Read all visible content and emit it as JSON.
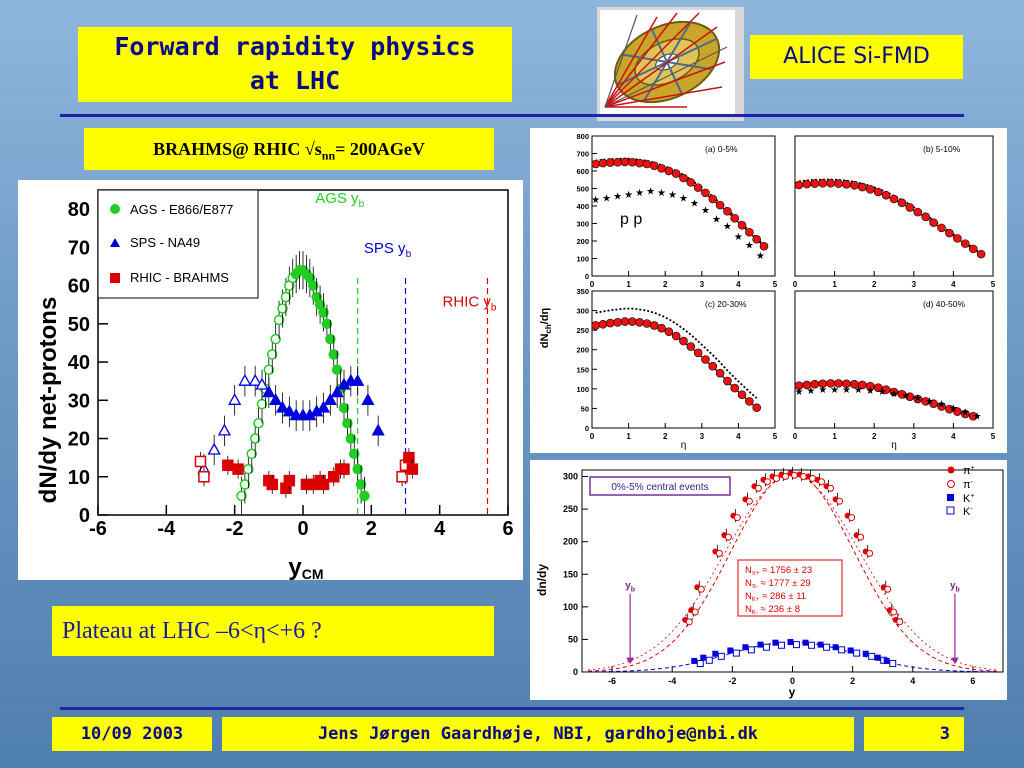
{
  "header": {
    "title_line1": "Forward rapidity physics",
    "title_line2": "at LHC",
    "detector_label": "ALICE Si-FMD"
  },
  "brahms_caption": {
    "prefix": "BRAHMS@ RHIC √s",
    "sub": "nn",
    "suffix": "= 200AGeV"
  },
  "plateau_caption": "Plateau at LHC –6<η<+6 ?",
  "footer": {
    "date": "10/09 2003",
    "author": "Jens Jørgen Gaardhøje, NBI, gardhoje@nbi.dk",
    "page": "3"
  },
  "colors": {
    "title_yellow": "#ffff00",
    "title_blue": "#0a0a8a",
    "green": "#22cc22",
    "blue": "#0000dd",
    "red": "#dd0000"
  },
  "chart_data": [
    {
      "type": "scatter",
      "ylabel": "dN/dy net-protons",
      "xlabel": "y",
      "xlabel_sub": "CM",
      "xlim": [
        -6,
        6
      ],
      "ylim": [
        0,
        85
      ],
      "xticks": [
        "-6",
        "-4",
        "-2",
        "0",
        "2",
        "4",
        "6"
      ],
      "yticks": [
        "0",
        "10",
        "20",
        "30",
        "40",
        "50",
        "60",
        "70",
        "80"
      ],
      "legend": [
        "AGS - E866/E877",
        "SPS - NA49",
        "RHIC - BRAHMS"
      ],
      "annotations": [
        {
          "label": "AGS y",
          "sub": "b",
          "x": 1.6,
          "color": "#22cc22"
        },
        {
          "label": "SPS y",
          "sub": "b",
          "x": 3.0,
          "color": "#0000dd"
        },
        {
          "label": "RHIC y",
          "sub": "b",
          "x": 5.4,
          "color": "#dd0000"
        }
      ],
      "series": [
        {
          "name": "AGS - E866/E877",
          "x": [
            -1.8,
            -1.7,
            -1.6,
            -1.5,
            -1.4,
            -1.3,
            -1.2,
            -1.1,
            -1.0,
            -0.9,
            -0.8,
            -0.7,
            -0.6,
            -0.5,
            -0.4,
            -0.3,
            -0.2,
            -0.1,
            0.0,
            0.1,
            0.2,
            0.3,
            0.4,
            0.5,
            0.6,
            0.7,
            0.8,
            0.9,
            1.0,
            1.1,
            1.2,
            1.3,
            1.4,
            1.5,
            1.6,
            1.7,
            1.8
          ],
          "y": [
            5,
            8,
            12,
            16,
            20,
            24,
            29,
            33,
            38,
            42,
            46,
            51,
            54,
            57,
            60,
            62,
            63,
            64,
            64,
            63,
            62,
            60,
            57,
            55,
            53,
            50,
            46,
            42,
            38,
            33,
            28,
            24,
            20,
            16,
            12,
            8,
            5
          ]
        },
        {
          "name": "SPS - NA49",
          "x": [
            -2.9,
            -2.6,
            -2.3,
            -2.0,
            -1.7,
            -1.4,
            -1.2,
            -1.0,
            -0.8,
            -0.6,
            -0.4,
            -0.2,
            0.0,
            0.2,
            0.4,
            0.6,
            0.8,
            1.0,
            1.2,
            1.4,
            1.6,
            1.9,
            2.2
          ],
          "y": [
            12,
            17,
            22,
            30,
            35,
            35,
            34,
            32,
            30,
            28,
            27,
            26,
            26,
            26,
            27,
            28,
            30,
            32,
            34,
            35,
            35,
            30,
            22
          ]
        },
        {
          "name": "RHIC - BRAHMS",
          "x": [
            -3.0,
            -2.9,
            -2.2,
            -1.9,
            -1.0,
            -0.9,
            -0.5,
            -0.4,
            0.1,
            0.3,
            0.5,
            0.6,
            0.9,
            1.1,
            1.2,
            2.9,
            3.0,
            3.1,
            3.2
          ],
          "y": [
            14,
            10,
            13,
            12,
            9,
            8,
            7,
            9,
            8,
            8,
            9,
            8,
            10,
            12,
            12,
            10,
            13,
            15,
            12
          ]
        }
      ]
    },
    {
      "type": "scatter",
      "ylabel": "dN",
      "ylabel_sub": "ch",
      "ylabel_tail": "/dη",
      "xlabel": "η",
      "panels": [
        {
          "label": "(a)   0-5%",
          "ylim": [
            0,
            800
          ],
          "yticks": [
            "0",
            "100",
            "200",
            "300",
            "400",
            "500",
            "600",
            "700",
            "800"
          ]
        },
        {
          "label": "(b)   5-10%",
          "ylim": [
            0,
            800
          ]
        },
        {
          "label": "(c)   20-30%",
          "ylim": [
            0,
            350
          ],
          "yticks": [
            "0",
            "50",
            "100",
            "150",
            "200",
            "250",
            "300",
            "350"
          ]
        },
        {
          "label": "(d)   40-50%",
          "ylim": [
            0,
            350
          ]
        }
      ],
      "xticks": [
        "0",
        "1",
        "2",
        "3",
        "4",
        "5"
      ],
      "pp_label": "p  p",
      "series_a_red": {
        "x": [
          0.1,
          0.3,
          0.5,
          0.7,
          0.9,
          1.1,
          1.3,
          1.5,
          1.7,
          1.9,
          2.1,
          2.3,
          2.5,
          2.7,
          2.9,
          3.1,
          3.3,
          3.5,
          3.7,
          3.9,
          4.1,
          4.3,
          4.5,
          4.7
        ],
        "y": [
          640,
          645,
          648,
          650,
          652,
          650,
          645,
          640,
          630,
          615,
          600,
          585,
          560,
          535,
          505,
          475,
          440,
          405,
          370,
          330,
          290,
          250,
          210,
          170
        ]
      },
      "series_a_star": {
        "x": [
          0.1,
          0.4,
          0.7,
          1.0,
          1.3,
          1.6,
          1.9,
          2.2,
          2.5,
          2.8,
          3.1,
          3.4,
          3.7,
          4.0,
          4.3,
          4.6
        ],
        "y": [
          440,
          450,
          460,
          470,
          480,
          490,
          480,
          470,
          450,
          420,
          380,
          330,
          290,
          230,
          180,
          120
        ]
      },
      "series_b_red": {
        "x": [
          0.1,
          0.3,
          0.5,
          0.7,
          0.9,
          1.1,
          1.3,
          1.5,
          1.7,
          1.9,
          2.1,
          2.3,
          2.5,
          2.7,
          2.9,
          3.1,
          3.3,
          3.5,
          3.7,
          3.9,
          4.1,
          4.3,
          4.5,
          4.7
        ],
        "y": [
          520,
          525,
          528,
          530,
          530,
          528,
          524,
          518,
          508,
          495,
          480,
          462,
          440,
          418,
          392,
          365,
          338,
          305,
          275,
          245,
          215,
          185,
          155,
          125
        ]
      },
      "series_c_red": {
        "x": [
          0.1,
          0.3,
          0.5,
          0.7,
          0.9,
          1.1,
          1.3,
          1.5,
          1.7,
          1.9,
          2.1,
          2.3,
          2.5,
          2.7,
          2.9,
          3.1,
          3.3,
          3.5,
          3.7,
          3.9,
          4.1,
          4.3,
          4.5
        ],
        "y": [
          262,
          265,
          268,
          270,
          272,
          272,
          270,
          267,
          262,
          255,
          246,
          235,
          222,
          208,
          192,
          175,
          158,
          140,
          120,
          102,
          85,
          68,
          52
        ]
      },
      "series_d_red": {
        "x": [
          0.1,
          0.3,
          0.5,
          0.7,
          0.9,
          1.1,
          1.3,
          1.5,
          1.7,
          1.9,
          2.1,
          2.3,
          2.5,
          2.7,
          2.9,
          3.1,
          3.3,
          3.5,
          3.7,
          3.9,
          4.1,
          4.3,
          4.5
        ],
        "y": [
          108,
          110,
          112,
          113,
          114,
          114,
          113,
          112,
          110,
          107,
          103,
          98,
          92,
          86,
          80,
          74,
          68,
          62,
          55,
          48,
          42,
          36,
          30
        ]
      },
      "series_d_star": {
        "x": [
          0.1,
          0.4,
          0.7,
          1.0,
          1.3,
          1.6,
          1.9,
          2.2,
          2.5,
          2.8,
          3.1,
          3.4,
          3.7,
          4.0,
          4.3,
          4.6
        ],
        "y": [
          95,
          97,
          99,
          100,
          100,
          99,
          97,
          94,
          90,
          84,
          78,
          70,
          62,
          52,
          42,
          32
        ]
      }
    },
    {
      "type": "scatter",
      "ylabel": "dn/dy",
      "xlabel": "y",
      "xlim": [
        -7,
        7
      ],
      "ylim": [
        0,
        310
      ],
      "xticks": [
        "-6",
        "-4",
        "-2",
        "0",
        "2",
        "4",
        "6"
      ],
      "yticks": [
        "0",
        "50",
        "100",
        "150",
        "200",
        "250",
        "300"
      ],
      "box_label": "0%-5% central events",
      "yb_label": "y",
      "yb_sub": "b",
      "legend": [
        {
          "label": "π",
          "sup": "+"
        },
        {
          "label": "π",
          "sup": "-"
        },
        {
          "label": "K",
          "sup": "+"
        },
        {
          "label": "K",
          "sup": "-"
        }
      ],
      "fit_results": [
        {
          "label": "N",
          "sub": "π+",
          "value": "≈ 1756 ± 23"
        },
        {
          "label": "N",
          "sub": "π-",
          "value": "≈ 1777 ± 29"
        },
        {
          "label": "N",
          "sub": "K+",
          "value": "≈ 286 ± 11"
        },
        {
          "label": "N",
          "sub": "K-",
          "value": "≈ 236 ± 8"
        }
      ],
      "series": [
        {
          "name": "π+",
          "x": [
            -3.5,
            -3.3,
            -3.1,
            -2.5,
            -2.2,
            -1.9,
            -1.5,
            -1.2,
            -0.9,
            -0.6,
            -0.3,
            0.0,
            0.3,
            0.6,
            0.9,
            1.2,
            1.5,
            1.9,
            2.2,
            2.5,
            3.1,
            3.3,
            3.5
          ],
          "y": [
            80,
            95,
            130,
            185,
            210,
            240,
            265,
            285,
            295,
            300,
            303,
            305,
            303,
            300,
            295,
            285,
            265,
            240,
            210,
            185,
            130,
            95,
            80
          ]
        },
        {
          "name": "K+",
          "x": [
            -3.2,
            -2.9,
            -2.5,
            -2.0,
            -1.5,
            -1.0,
            -0.5,
            0.0,
            0.5,
            1.0,
            1.5,
            2.0,
            2.5,
            2.9,
            3.2
          ],
          "y": [
            17,
            22,
            28,
            33,
            38,
            42,
            45,
            46,
            45,
            42,
            38,
            33,
            28,
            22,
            17
          ]
        }
      ]
    }
  ]
}
